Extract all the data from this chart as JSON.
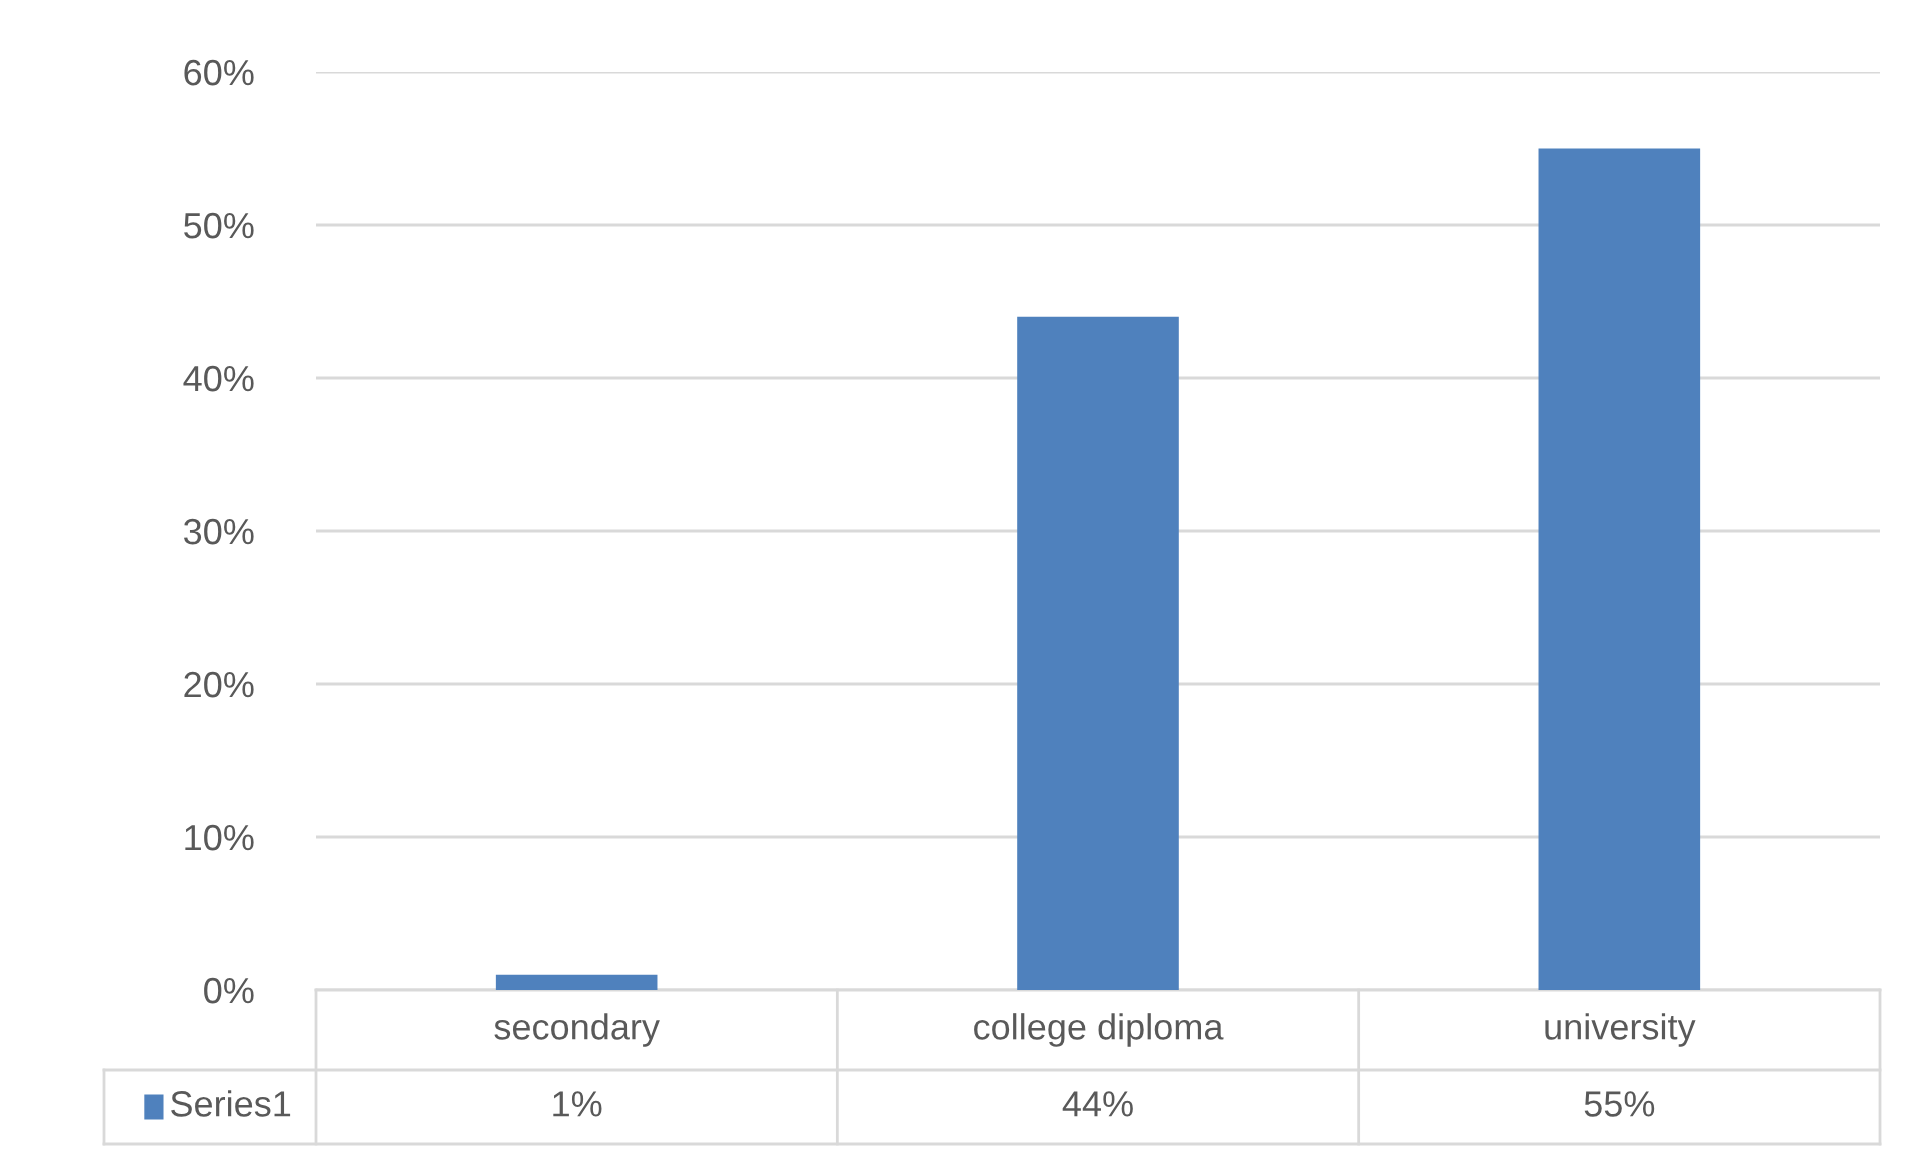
{
  "chart_data": {
    "type": "bar",
    "categories": [
      "secondary",
      "college diploma",
      "university"
    ],
    "series": [
      {
        "name": "Series1",
        "color": "#4f81bd",
        "values": [
          1,
          44,
          55
        ],
        "value_labels": [
          "1%",
          "44%",
          "55%"
        ]
      }
    ],
    "ylim": [
      0,
      60
    ],
    "yticks": [
      {
        "value": 0,
        "label": "0%"
      },
      {
        "value": 10,
        "label": "10%"
      },
      {
        "value": 20,
        "label": "20%"
      },
      {
        "value": 30,
        "label": "30%"
      },
      {
        "value": 40,
        "label": "40%"
      },
      {
        "value": 50,
        "label": "50%"
      },
      {
        "value": 60,
        "label": "60%"
      }
    ],
    "grid": "y",
    "legend": "bottom"
  }
}
